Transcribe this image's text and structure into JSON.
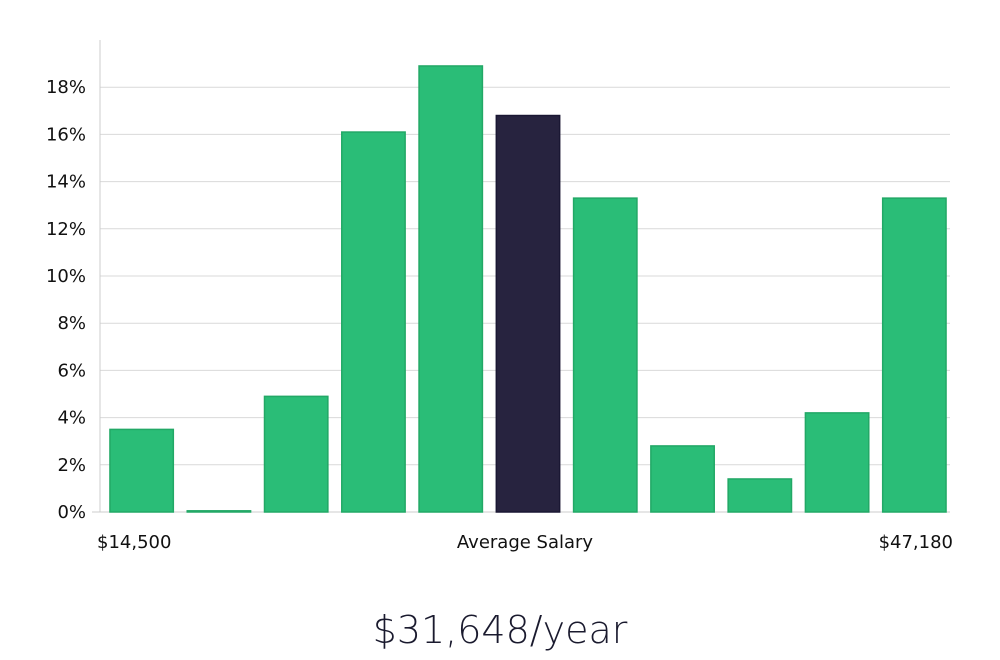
{
  "chart_data": {
    "type": "bar",
    "title": "",
    "xlabel": "Average Salary",
    "ylabel": "",
    "x_min_label": "$14,500",
    "x_max_label": "$47,180",
    "ylim": [
      0,
      20
    ],
    "yticks": [
      "0%",
      "2%",
      "4%",
      "6%",
      "8%",
      "10%",
      "12%",
      "14%",
      "16%",
      "18%"
    ],
    "grid": true,
    "values": [
      3.5,
      0.05,
      4.9,
      16.1,
      18.9,
      16.8,
      13.3,
      2.8,
      1.4,
      4.2,
      13.3
    ],
    "highlight_index": 5,
    "colors": {
      "bar": "#2abd77",
      "highlight": "#27233f",
      "grid": "#d9d9d9",
      "axis": "#cccccc"
    }
  },
  "summary": {
    "average_salary": "$31,648/year"
  }
}
